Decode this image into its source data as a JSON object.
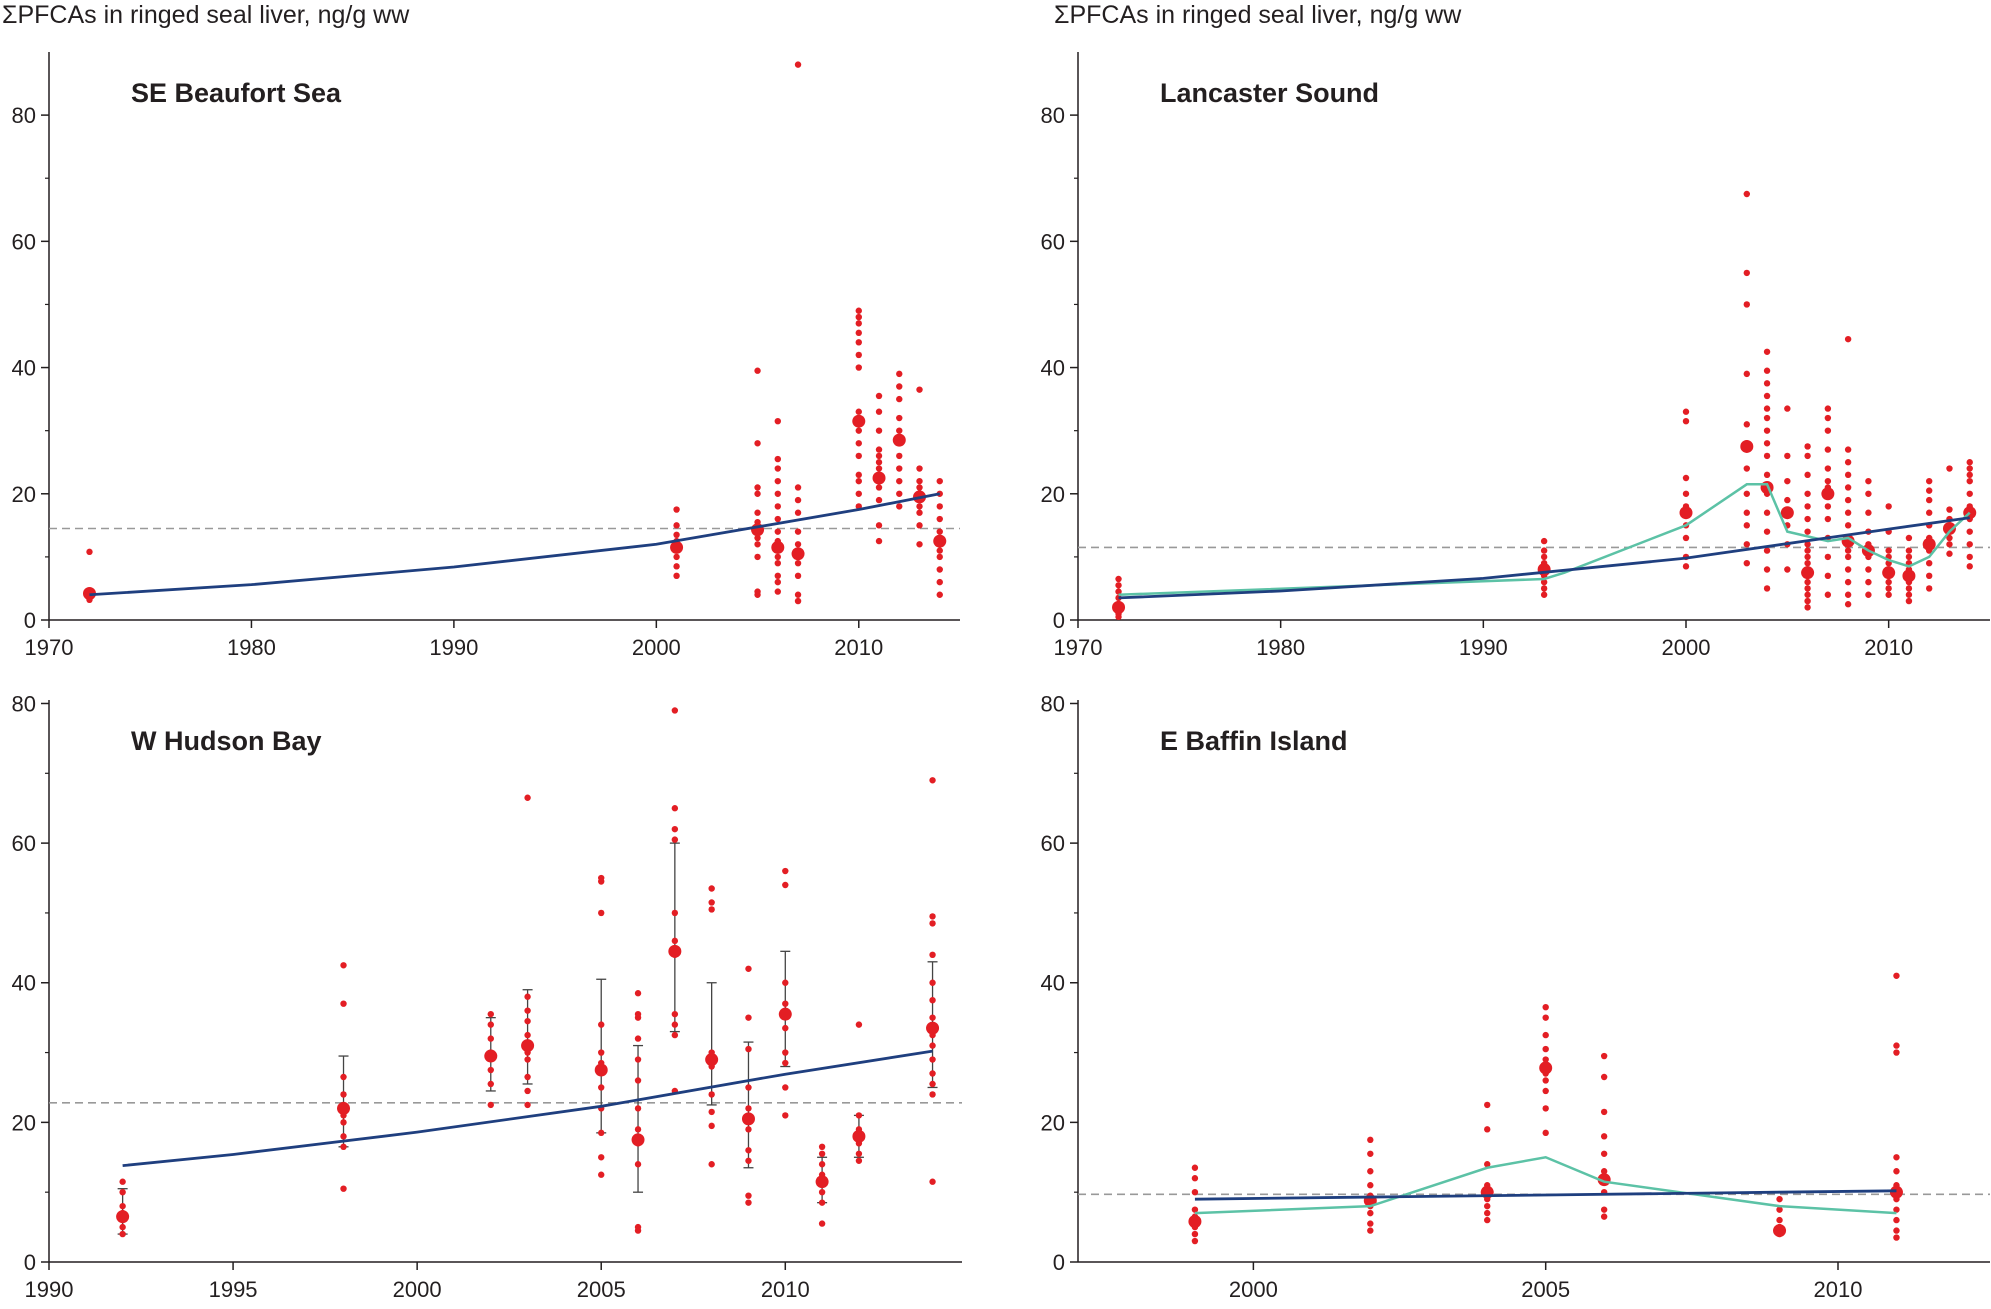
{
  "colors": {
    "points": "#e31e24",
    "trend": "#1f3f7f",
    "smooth": "#5cc2a6",
    "mean_line": "#999999",
    "axis": "#231f20"
  },
  "chart_data": [
    {
      "type": "scatter",
      "title": "SE Beaufort Sea",
      "ylabel": "ΣPFCAs in ringed seal liver, ng/g ww",
      "xlim": [
        1970,
        2015
      ],
      "ylim": [
        0,
        90
      ],
      "xticks": [
        1970,
        1980,
        1990,
        2000,
        2010
      ],
      "yticks": [
        0,
        20,
        40,
        60,
        80
      ],
      "mean_level": 14.5,
      "trend": [
        [
          1972,
          4
        ],
        [
          1980,
          5.6
        ],
        [
          1990,
          8.4
        ],
        [
          2000,
          12
        ],
        [
          2010,
          17.5
        ],
        [
          2014,
          20
        ]
      ],
      "smooth": [],
      "error_bars": [],
      "groups": [
        {
          "year": 1972,
          "median": 4.2,
          "values": [
            3.2,
            3.8,
            4.5,
            10.8
          ]
        },
        {
          "year": 2001,
          "median": 11.5,
          "values": [
            7,
            8.5,
            10,
            12.5,
            13.5,
            15,
            17.5
          ]
        },
        {
          "year": 2005,
          "median": 14.3,
          "values": [
            4,
            4.5,
            10,
            12,
            13,
            14,
            15.5,
            17,
            20,
            21,
            28,
            39.5
          ]
        },
        {
          "year": 2006,
          "median": 11.5,
          "values": [
            4.5,
            6,
            7,
            9,
            10,
            11,
            12.5,
            14,
            16,
            18,
            20,
            22,
            24,
            25.5,
            31.5
          ]
        },
        {
          "year": 2007,
          "median": 10.5,
          "values": [
            3,
            4,
            7,
            9,
            12,
            14,
            17,
            19,
            21,
            88
          ]
        },
        {
          "year": 2010,
          "median": 31.5,
          "values": [
            18,
            20,
            22,
            23,
            26,
            28,
            30,
            33,
            40,
            42,
            44,
            45.5,
            47,
            48,
            49
          ]
        },
        {
          "year": 2011,
          "median": 22.5,
          "values": [
            12.5,
            15,
            19,
            21,
            24,
            25,
            26,
            27,
            30,
            33,
            35.5
          ]
        },
        {
          "year": 2012,
          "median": 28.5,
          "values": [
            18,
            20,
            22,
            24,
            26,
            30,
            32,
            35,
            37,
            39
          ]
        },
        {
          "year": 2013,
          "median": 19.5,
          "values": [
            12,
            15,
            17,
            18,
            20,
            21,
            22,
            24,
            36.5
          ]
        },
        {
          "year": 2014,
          "median": 12.5,
          "values": [
            4,
            6,
            8,
            10,
            11,
            13,
            14,
            16,
            18,
            20,
            22
          ]
        }
      ]
    },
    {
      "type": "scatter",
      "title": "Lancaster Sound",
      "ylabel": "ΣPFCAs in ringed seal liver, ng/g ww",
      "xlim": [
        1970,
        2015
      ],
      "ylim": [
        0,
        90
      ],
      "xticks": [
        1970,
        1980,
        1990,
        2000,
        2010
      ],
      "yticks": [
        0,
        20,
        40,
        60,
        80
      ],
      "mean_level": 11.5,
      "trend": [
        [
          1972,
          3.5
        ],
        [
          1980,
          4.6
        ],
        [
          1990,
          6.6
        ],
        [
          2000,
          9.8
        ],
        [
          2010,
          14.4
        ],
        [
          2014,
          16.2
        ]
      ],
      "smooth": [
        [
          1972,
          4
        ],
        [
          1993,
          6.5
        ],
        [
          1994,
          7.5
        ],
        [
          2000,
          15
        ],
        [
          2003,
          21.5
        ],
        [
          2004,
          21.5
        ],
        [
          2005,
          14
        ],
        [
          2007,
          12.5
        ],
        [
          2008,
          13
        ],
        [
          2009,
          11
        ],
        [
          2010,
          9.5
        ],
        [
          2011,
          8.5
        ],
        [
          2012,
          10
        ],
        [
          2013,
          14
        ],
        [
          2014,
          17
        ]
      ],
      "error_bars": [],
      "groups": [
        {
          "year": 1972,
          "median": 2,
          "values": [
            0.5,
            1,
            1.5,
            2.5,
            3.5,
            4.5,
            5.5,
            6.5
          ]
        },
        {
          "year": 1993,
          "median": 8,
          "values": [
            4,
            5,
            6,
            7,
            8.5,
            9,
            10,
            11,
            12.5
          ]
        },
        {
          "year": 2000,
          "median": 17,
          "values": [
            8.5,
            10,
            13,
            15,
            18,
            20,
            22.5,
            31.5,
            33
          ]
        },
        {
          "year": 2003,
          "median": 27.5,
          "values": [
            9,
            12,
            15,
            17,
            20,
            24,
            28,
            31,
            39,
            50,
            55,
            67.5
          ]
        },
        {
          "year": 2004,
          "median": 21,
          "values": [
            5,
            8,
            11,
            14,
            17,
            20,
            23,
            26,
            28,
            30,
            32,
            33.5,
            35.5,
            37.5,
            39.5,
            42.5
          ]
        },
        {
          "year": 2005,
          "median": 17,
          "values": [
            8,
            12,
            15,
            19,
            22,
            26,
            33.5
          ]
        },
        {
          "year": 2006,
          "median": 7.5,
          "values": [
            2,
            3,
            4,
            5,
            6,
            8,
            9,
            10,
            11,
            12,
            14,
            16,
            18,
            20,
            23,
            26,
            27.5
          ]
        },
        {
          "year": 2007,
          "median": 20,
          "values": [
            4,
            7,
            10,
            13,
            16,
            18,
            21,
            22,
            24,
            27,
            30,
            32,
            33.5
          ]
        },
        {
          "year": 2008,
          "median": 12.5,
          "values": [
            2.5,
            4,
            6,
            8,
            10,
            11,
            13,
            15,
            17,
            19,
            21,
            23,
            25,
            27,
            44.5
          ]
        },
        {
          "year": 2009,
          "median": 11,
          "values": [
            4,
            6,
            8,
            10,
            12,
            14,
            17,
            20,
            22
          ]
        },
        {
          "year": 2010,
          "median": 7.5,
          "values": [
            4,
            5,
            6,
            8,
            9,
            10,
            11,
            14,
            18
          ]
        },
        {
          "year": 2011,
          "median": 7,
          "values": [
            3,
            4,
            5,
            6,
            8,
            9,
            10,
            11,
            13
          ]
        },
        {
          "year": 2012,
          "median": 12,
          "values": [
            5,
            7,
            9,
            11,
            13,
            15,
            17,
            19,
            20.5,
            22
          ]
        },
        {
          "year": 2013,
          "median": 14.5,
          "values": [
            10.5,
            12,
            13,
            15,
            16,
            17.5,
            24
          ]
        },
        {
          "year": 2014,
          "median": 17,
          "values": [
            8.5,
            10,
            12,
            14,
            16,
            18,
            20,
            22,
            23,
            24,
            25
          ]
        }
      ]
    },
    {
      "type": "scatter",
      "title": "W Hudson Bay",
      "ylabel": "",
      "xlim": [
        1990,
        2014.8
      ],
      "ylim": [
        0,
        80.5
      ],
      "xticks": [
        1990,
        1995,
        2000,
        2005,
        2010
      ],
      "yticks": [
        0,
        20,
        40,
        60,
        80
      ],
      "mean_level": 22.8,
      "trend": [
        [
          1992,
          13.8
        ],
        [
          1995,
          15.4
        ],
        [
          2000,
          18.6
        ],
        [
          2005,
          22.3
        ],
        [
          2010,
          26.9
        ],
        [
          2014,
          30.2
        ]
      ],
      "smooth": [],
      "error_bars": [
        {
          "year": 1992,
          "low": 4,
          "high": 10.5
        },
        {
          "year": 1998,
          "low": 16.5,
          "high": 29.5
        },
        {
          "year": 2002,
          "low": 24.5,
          "high": 35
        },
        {
          "year": 2003,
          "low": 25.5,
          "high": 39
        },
        {
          "year": 2005,
          "low": 18.5,
          "high": 40.5
        },
        {
          "year": 2006,
          "low": 10,
          "high": 31
        },
        {
          "year": 2007,
          "low": 33,
          "high": 60
        },
        {
          "year": 2008,
          "low": 22.5,
          "high": 40
        },
        {
          "year": 2009,
          "low": 13.5,
          "high": 31.5
        },
        {
          "year": 2010,
          "low": 28,
          "high": 44.5
        },
        {
          "year": 2011,
          "low": 8.5,
          "high": 15
        },
        {
          "year": 2012,
          "low": 15,
          "high": 21
        },
        {
          "year": 2014,
          "low": 25,
          "high": 43
        }
      ],
      "groups": [
        {
          "year": 1992,
          "median": 6.5,
          "values": [
            4,
            5,
            6,
            7,
            8,
            10,
            11.5
          ]
        },
        {
          "year": 1998,
          "median": 22,
          "values": [
            10.5,
            16.5,
            18,
            20,
            21,
            22.5,
            24,
            26.5,
            37,
            42.5
          ]
        },
        {
          "year": 2002,
          "median": 29.5,
          "values": [
            22.5,
            25.5,
            27.5,
            30,
            32,
            34,
            35.5
          ]
        },
        {
          "year": 2003,
          "median": 31,
          "values": [
            22.5,
            24.5,
            26.5,
            29,
            30,
            32.5,
            34.5,
            36,
            38,
            66.5
          ]
        },
        {
          "year": 2005,
          "median": 27.5,
          "values": [
            12.5,
            15,
            18.5,
            22,
            25,
            28.5,
            30,
            34,
            50,
            54.5,
            55
          ]
        },
        {
          "year": 2006,
          "median": 17.5,
          "values": [
            4.5,
            5,
            14,
            17,
            19,
            22,
            26,
            29,
            32,
            35,
            35.5,
            38.5
          ]
        },
        {
          "year": 2007,
          "median": 44.5,
          "values": [
            24.5,
            32.5,
            34,
            35.5,
            44,
            46,
            50,
            60.5,
            62,
            65,
            79
          ]
        },
        {
          "year": 2008,
          "median": 29,
          "values": [
            14,
            19.5,
            21.5,
            24,
            28,
            30,
            50.5,
            51.5,
            53.5
          ]
        },
        {
          "year": 2009,
          "median": 20.5,
          "values": [
            8.5,
            9.5,
            14.5,
            16,
            19,
            22,
            25,
            30.5,
            35,
            42
          ]
        },
        {
          "year": 2010,
          "median": 35.5,
          "values": [
            21,
            25,
            28.5,
            30,
            33.5,
            36,
            37,
            40,
            54,
            56
          ]
        },
        {
          "year": 2011,
          "median": 11.5,
          "values": [
            5.5,
            8.5,
            10,
            12.5,
            14,
            15.5,
            16.5
          ]
        },
        {
          "year": 2012,
          "median": 18,
          "values": [
            14.5,
            15.5,
            17,
            19,
            21,
            34
          ]
        },
        {
          "year": 2014,
          "median": 33.5,
          "values": [
            11.5,
            24,
            25.5,
            27,
            29,
            31,
            32.5,
            35,
            37.5,
            40,
            44,
            48.5,
            49.5,
            69
          ]
        }
      ]
    },
    {
      "type": "scatter",
      "title": "E Baffin Island",
      "ylabel": "",
      "xlim": [
        1997,
        2012.6
      ],
      "ylim": [
        0,
        80.5
      ],
      "xticks": [
        2000,
        2005,
        2010
      ],
      "yticks": [
        0,
        20,
        40,
        60,
        80
      ],
      "mean_level": 9.7,
      "trend": [
        [
          1999,
          9
        ],
        [
          2002,
          9.3
        ],
        [
          2005,
          9.6
        ],
        [
          2008,
          9.9
        ],
        [
          2011,
          10.2
        ]
      ],
      "smooth": [
        [
          1999,
          7
        ],
        [
          2002,
          8
        ],
        [
          2004,
          13.5
        ],
        [
          2005,
          15
        ],
        [
          2006,
          11.5
        ],
        [
          2009,
          8
        ],
        [
          2011,
          7
        ]
      ],
      "error_bars": [],
      "groups": [
        {
          "year": 1999,
          "median": 5.8,
          "values": [
            3,
            4,
            5,
            6.5,
            7.5,
            10,
            12,
            13.5
          ]
        },
        {
          "year": 2002,
          "median": 8.8,
          "values": [
            4.5,
            5.5,
            7,
            8,
            9.5,
            11,
            13,
            15.5,
            17.5
          ]
        },
        {
          "year": 2004,
          "median": 10,
          "values": [
            6,
            7,
            8,
            9,
            11,
            14,
            19,
            22.5
          ]
        },
        {
          "year": 2005,
          "median": 27.8,
          "values": [
            18.5,
            22,
            24.5,
            26,
            27,
            29,
            30.5,
            32.5,
            35,
            36.5
          ]
        },
        {
          "year": 2006,
          "median": 11.8,
          "values": [
            6.5,
            7.5,
            10,
            13,
            15.5,
            18,
            21.5,
            26.5,
            29.5
          ]
        },
        {
          "year": 2009,
          "median": 4.5,
          "values": [
            4,
            5,
            6,
            7.5,
            9
          ]
        },
        {
          "year": 2011,
          "median": 10,
          "values": [
            3.5,
            4.5,
            6,
            7.5,
            9,
            11,
            13,
            15,
            30,
            31,
            41
          ]
        }
      ]
    }
  ]
}
